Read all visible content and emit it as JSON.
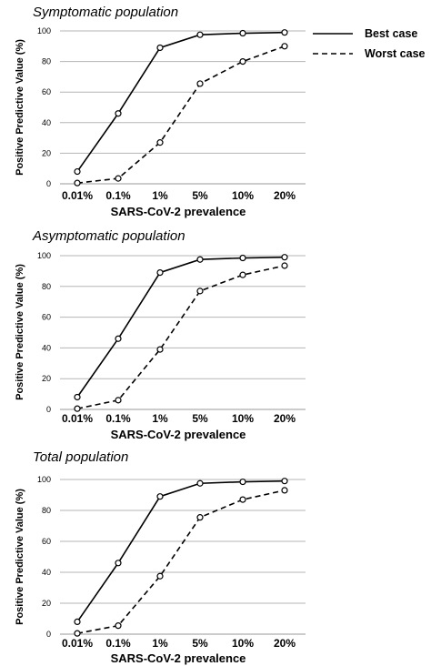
{
  "chart_data": [
    {
      "type": "line",
      "title": "Symptomatic population",
      "xlabel": "SARS-CoV-2 prevalence",
      "ylabel": "Positive Predictive Value (%)",
      "categories": [
        "0.01%",
        "0.1%",
        "1%",
        "5%",
        "10%",
        "20%"
      ],
      "ylim": [
        0,
        100
      ],
      "yticks": [
        0,
        20,
        40,
        60,
        80,
        100
      ],
      "grid": true,
      "legend": "right",
      "series": [
        {
          "name": "Best case",
          "style": "solid",
          "values": [
            8,
            46,
            89,
            97.5,
            98.5,
            99
          ]
        },
        {
          "name": "Worst case",
          "style": "dashed",
          "values": [
            0.5,
            3.5,
            27,
            65.5,
            80,
            90
          ]
        }
      ]
    },
    {
      "type": "line",
      "title": "Asymptomatic population",
      "xlabel": "SARS-CoV-2 prevalence",
      "ylabel": "Positive Predictive Value (%)",
      "categories": [
        "0.01%",
        "0.1%",
        "1%",
        "5%",
        "10%",
        "20%"
      ],
      "ylim": [
        0,
        100
      ],
      "yticks": [
        0,
        20,
        40,
        60,
        80,
        100
      ],
      "grid": true,
      "series": [
        {
          "name": "Best case",
          "style": "solid",
          "values": [
            8,
            46,
            89,
            97.5,
            98.5,
            99
          ]
        },
        {
          "name": "Worst case",
          "style": "dashed",
          "values": [
            0.5,
            6,
            39,
            77,
            87.5,
            93.5
          ]
        }
      ]
    },
    {
      "type": "line",
      "title": "Total population",
      "xlabel": "SARS-CoV-2 prevalence",
      "ylabel": "Positive Predictive Value (%)",
      "categories": [
        "0.01%",
        "0.1%",
        "1%",
        "5%",
        "10%",
        "20%"
      ],
      "ylim": [
        0,
        100
      ],
      "yticks": [
        0,
        20,
        40,
        60,
        80,
        100
      ],
      "grid": true,
      "series": [
        {
          "name": "Best case",
          "style": "solid",
          "values": [
            8,
            46,
            89,
            97.5,
            98.5,
            99
          ]
        },
        {
          "name": "Worst case",
          "style": "dashed",
          "values": [
            0.5,
            5.5,
            37.5,
            75.5,
            87,
            93
          ]
        }
      ]
    }
  ]
}
